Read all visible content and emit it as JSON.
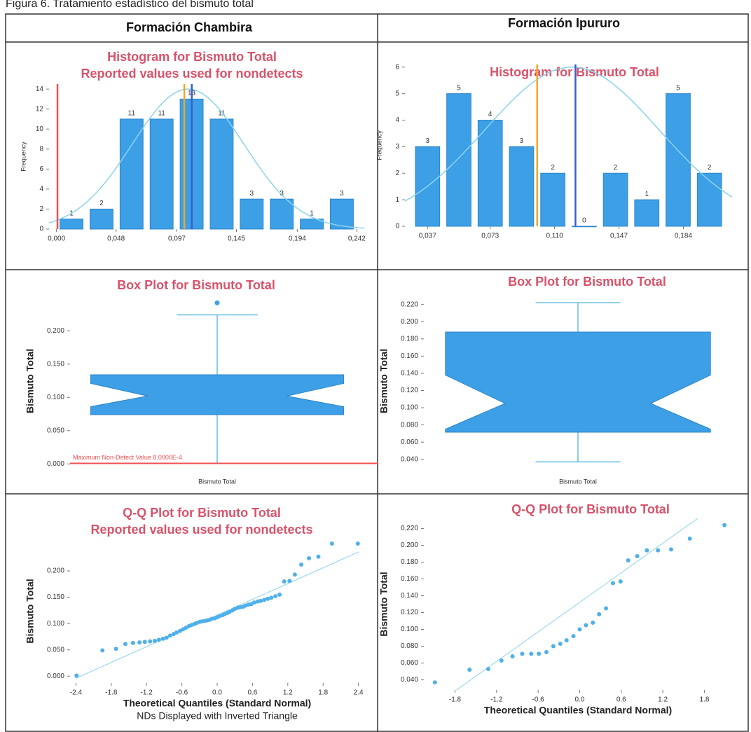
{
  "caption": "Figura 6. Tratamiento estadístico del bismuto total",
  "columns": [
    "Formación Chambira",
    "Formación Ipururo"
  ],
  "chart_data": [
    {
      "type": "histogram",
      "title": "Histogram for Bismuto Total",
      "subtitle": "Reported values used for nondetects",
      "ylabel": "Frequency",
      "bins": [
        0,
        0.0242,
        0.0484,
        0.0726,
        0.0968,
        0.121,
        0.1452,
        0.1694,
        0.1936,
        0.2178,
        0.242
      ],
      "values": [
        1,
        2,
        11,
        11,
        13,
        11,
        3,
        3,
        1,
        3
      ],
      "color": "#3d9fe6",
      "xlim": [
        -0.006,
        0.248
      ],
      "xticks": [
        {
          "value": 0,
          "label": "0,000"
        },
        {
          "value": 0.048,
          "label": "0,048"
        },
        {
          "value": 0.097,
          "label": "0,097"
        },
        {
          "value": 0.145,
          "label": "0,145"
        },
        {
          "value": 0.194,
          "label": "0,194"
        },
        {
          "value": 0.242,
          "label": "0,242"
        }
      ],
      "ylim": [
        0,
        14.5
      ],
      "yticks": [
        0,
        2,
        4,
        6,
        8,
        10,
        12,
        14
      ],
      "curve": {
        "mean": 0.106,
        "sd": 0.045,
        "peak": 14,
        "color": "#8ad4ee"
      },
      "vlines": [
        {
          "value": 0.0008,
          "color": "#f0504f"
        },
        {
          "value": 0.103,
          "color": "#f5a623"
        },
        {
          "value": 0.109,
          "color": "#3a5fcd"
        }
      ]
    },
    {
      "type": "histogram",
      "title": "Histogram for Bismuto Total",
      "ylabel": "Frequency",
      "bins": [
        0.028,
        0.046,
        0.064,
        0.082,
        0.1,
        0.118,
        0.136,
        0.154,
        0.172,
        0.19,
        0.208
      ],
      "values": [
        3,
        5,
        4,
        3,
        2,
        0,
        2,
        1,
        5,
        2
      ],
      "color": "#3d9fe6",
      "xlim": [
        0.024,
        0.212
      ],
      "xticks": [
        {
          "value": 0.037,
          "label": "0,037"
        },
        {
          "value": 0.073,
          "label": "0,073"
        },
        {
          "value": 0.11,
          "label": "0,110"
        },
        {
          "value": 0.147,
          "label": "0,147"
        },
        {
          "value": 0.184,
          "label": "0,184"
        }
      ],
      "ylim": [
        0,
        6.1
      ],
      "yticks": [
        0,
        1,
        2,
        3,
        4,
        5,
        6
      ],
      "curve": {
        "mean": 0.12,
        "sd": 0.05,
        "peak": 6,
        "color": "#8ad4ee"
      },
      "vlines": [
        {
          "value": 0.1,
          "color": "#f5a623"
        },
        {
          "value": 0.122,
          "color": "#3a5fcd"
        }
      ]
    },
    {
      "type": "box",
      "title": "Box Plot for Bismuto Total",
      "ylabel": "Bismuto Total",
      "xlabel": "Bismuto Total",
      "color": "#3d9fe6",
      "ylim": [
        -0.006,
        0.255
      ],
      "yticks": [
        {
          "value": 0,
          "label": "0.000"
        },
        {
          "value": 0.05,
          "label": "0.050"
        },
        {
          "value": 0.1,
          "label": "0.100"
        },
        {
          "value": 0.15,
          "label": "0.150"
        },
        {
          "value": 0.2,
          "label": "0.200"
        }
      ],
      "box": {
        "whisker_low": 0.0008,
        "q1": 0.074,
        "notch_low": 0.086,
        "median": 0.102,
        "notch_high": 0.121,
        "q3": 0.134,
        "whisker_high": 0.224
      },
      "outliers": [
        0.242
      ],
      "reference_line": {
        "value": 0.0008,
        "label": "Maximum Non-Detect Value 8.0000E-4",
        "color": "#f0504f"
      }
    },
    {
      "type": "box",
      "title": "Box Plot for Bismuto Total",
      "ylabel": "Bismuto Total",
      "xlabel": "Bismuto Total",
      "color": "#3d9fe6",
      "ylim": [
        0.03,
        0.232
      ],
      "yticks": [
        {
          "value": 0.04,
          "label": "0.040"
        },
        {
          "value": 0.06,
          "label": "0.060"
        },
        {
          "value": 0.08,
          "label": "0.080"
        },
        {
          "value": 0.1,
          "label": "0.100"
        },
        {
          "value": 0.12,
          "label": "0.120"
        },
        {
          "value": 0.14,
          "label": "0.140"
        },
        {
          "value": 0.16,
          "label": "0.160"
        },
        {
          "value": 0.18,
          "label": "0.180"
        },
        {
          "value": 0.2,
          "label": "0.200"
        },
        {
          "value": 0.22,
          "label": "0.220"
        }
      ],
      "box": {
        "whisker_low": 0.037,
        "q1": 0.0715,
        "notch_low": 0.075,
        "median": 0.105,
        "notch_high": 0.138,
        "q3": 0.188,
        "whisker_high": 0.222
      },
      "outliers": []
    },
    {
      "type": "qq",
      "title": "Q-Q Plot for Bismuto Total",
      "subtitle": "Reported values used for nondetects",
      "ylabel": "Bismuto Total",
      "xlabel": "Theoretical Quantiles (Standard Normal)",
      "note": "NDs Displayed with Inverted Triangle",
      "color": "#4fb0ea",
      "x": [
        -2.39,
        -1.95,
        -1.72,
        -1.56,
        -1.43,
        -1.32,
        -1.23,
        -1.14,
        -1.06,
        -0.99,
        -0.92,
        -0.86,
        -0.8,
        -0.74,
        -0.69,
        -0.63,
        -0.58,
        -0.53,
        -0.48,
        -0.44,
        -0.39,
        -0.35,
        -0.3,
        -0.26,
        -0.21,
        -0.17,
        -0.13,
        -0.09,
        -0.04,
        0,
        0.04,
        0.09,
        0.13,
        0.17,
        0.21,
        0.26,
        0.3,
        0.35,
        0.39,
        0.44,
        0.48,
        0.53,
        0.58,
        0.63,
        0.69,
        0.74,
        0.8,
        0.86,
        0.92,
        0.99,
        1.06,
        1.14,
        1.23,
        1.32,
        1.43,
        1.56,
        1.72,
        1.95,
        2.39
      ],
      "y": [
        0.001,
        0.049,
        0.052,
        0.061,
        0.063,
        0.064,
        0.065,
        0.066,
        0.067,
        0.069,
        0.071,
        0.073,
        0.077,
        0.08,
        0.083,
        0.086,
        0.089,
        0.092,
        0.095,
        0.097,
        0.099,
        0.101,
        0.103,
        0.104,
        0.105,
        0.106,
        0.107,
        0.109,
        0.11,
        0.112,
        0.114,
        0.116,
        0.118,
        0.12,
        0.122,
        0.125,
        0.128,
        0.13,
        0.131,
        0.132,
        0.134,
        0.136,
        0.137,
        0.14,
        0.142,
        0.143,
        0.145,
        0.147,
        0.149,
        0.152,
        0.155,
        0.18,
        0.181,
        0.193,
        0.212,
        0.224,
        0.227,
        0.252,
        0.252
      ],
      "ref_line": {
        "x": [
          -2.4,
          2.4
        ],
        "y": [
          -0.004,
          0.236
        ]
      },
      "xlim": [
        -2.5,
        2.5
      ],
      "ylim": [
        -0.013,
        0.26
      ],
      "xticks": [
        -2.4,
        -1.8,
        -1.2,
        -0.6,
        {
          "value": 0,
          "label": "0.0"
        },
        0.6,
        1.2,
        1.8,
        2.4
      ],
      "yticks": [
        {
          "value": 0,
          "label": "0.000"
        },
        {
          "value": 0.05,
          "label": "0.050"
        },
        {
          "value": 0.1,
          "label": "0.100"
        },
        {
          "value": 0.15,
          "label": "0.150"
        },
        {
          "value": 0.2,
          "label": "0.200"
        }
      ]
    },
    {
      "type": "qq",
      "title": "Q-Q Plot for Bismuto Total",
      "ylabel": "Bismuto Total",
      "xlabel": "Theoretical Quantiles (Standard Normal)",
      "color": "#4fb0ea",
      "x": [
        -2.09,
        -1.59,
        -1.32,
        -1.13,
        -0.97,
        -0.83,
        -0.7,
        -0.59,
        -0.48,
        -0.38,
        -0.28,
        -0.19,
        -0.09,
        0,
        0.09,
        0.19,
        0.28,
        0.38,
        0.48,
        0.59,
        0.7,
        0.83,
        0.97,
        1.13,
        1.32,
        1.59,
        2.09
      ],
      "y": [
        0.037,
        0.052,
        0.053,
        0.063,
        0.068,
        0.071,
        0.071,
        0.071,
        0.073,
        0.08,
        0.083,
        0.087,
        0.092,
        0.1,
        0.105,
        0.108,
        0.118,
        0.125,
        0.155,
        0.157,
        0.182,
        0.187,
        0.194,
        0.194,
        0.195,
        0.208,
        0.224
      ],
      "ref_line": {
        "x": [
          -2.2,
          2.2
        ],
        "y": [
          0.0033,
          0.261
        ]
      },
      "xlim": [
        -2.25,
        2.2
      ],
      "ylim": [
        0.028,
        0.232
      ],
      "xticks": [
        -1.8,
        -1.2,
        -0.6,
        {
          "value": 0,
          "label": "0.0"
        },
        0.6,
        1.2,
        1.8
      ],
      "yticks": [
        {
          "value": 0.04,
          "label": "0.040"
        },
        {
          "value": 0.06,
          "label": "0.060"
        },
        {
          "value": 0.08,
          "label": "0.080"
        },
        {
          "value": 0.1,
          "label": "0.100"
        },
        {
          "value": 0.12,
          "label": "0.120"
        },
        {
          "value": 0.14,
          "label": "0.140"
        },
        {
          "value": 0.16,
          "label": "0.160"
        },
        {
          "value": 0.18,
          "label": "0.180"
        },
        {
          "value": 0.2,
          "label": "0.200"
        },
        {
          "value": 0.22,
          "label": "0.220"
        }
      ]
    }
  ]
}
